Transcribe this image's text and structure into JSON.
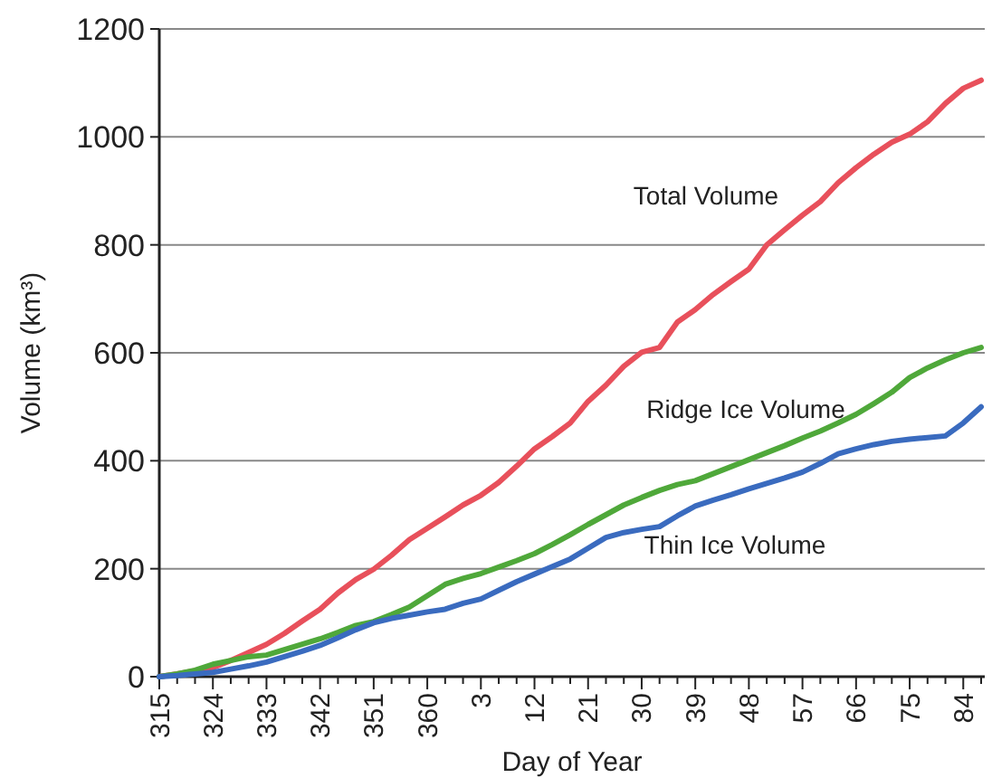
{
  "chart_data": {
    "type": "line",
    "xlabel": "Day of Year",
    "ylabel": "Volume (km³)",
    "ylim": [
      0,
      1200
    ],
    "yticks": [
      0,
      200,
      400,
      600,
      800,
      1000,
      1200
    ],
    "grid": "y",
    "legend": false,
    "marker": "none",
    "line_style": "solid",
    "categories": [
      "315",
      null,
      null,
      "324",
      null,
      null,
      "333",
      null,
      null,
      "342",
      null,
      null,
      "351",
      null,
      null,
      "360",
      null,
      null,
      "3",
      null,
      null,
      "12",
      null,
      null,
      "21",
      null,
      null,
      "30",
      null,
      null,
      "39",
      null,
      null,
      "48",
      null,
      null,
      "57",
      null,
      null,
      "66",
      null,
      null,
      "75",
      null,
      null,
      "84",
      null
    ],
    "series": [
      {
        "name": "Total Volume",
        "color": "#e8505b",
        "values": [
          0,
          5,
          11,
          17,
          30,
          45,
          60,
          80,
          103,
          125,
          155,
          180,
          199,
          225,
          254,
          275,
          296,
          318,
          336,
          360,
          390,
          422,
          445,
          470,
          510,
          540,
          575,
          601,
          610,
          657,
          680,
          708,
          732,
          755,
          800,
          828,
          855,
          880,
          915,
          943,
          968,
          990,
          1005,
          1028,
          1062,
          1090,
          1105
        ]
      },
      {
        "name": "Ridge Ice Volume",
        "color": "#4fa83a",
        "values": [
          0,
          5,
          12,
          23,
          30,
          37,
          40,
          50,
          60,
          70,
          82,
          95,
          102,
          115,
          129,
          150,
          171,
          182,
          191,
          203,
          215,
          228,
          245,
          263,
          282,
          300,
          318,
          332,
          345,
          356,
          363,
          376,
          389,
          402,
          415,
          428,
          442,
          455,
          470,
          486,
          506,
          527,
          554,
          572,
          587,
          600,
          610
        ]
      },
      {
        "name": "Thin Ice Volume",
        "color": "#3a6bbf",
        "values": [
          0,
          2,
          5,
          8,
          14,
          20,
          27,
          37,
          47,
          58,
          72,
          87,
          100,
          108,
          114,
          120,
          125,
          136,
          144,
          160,
          176,
          190,
          204,
          218,
          238,
          258,
          267,
          273,
          278,
          298,
          316,
          327,
          337,
          348,
          358,
          368,
          379,
          395,
          413,
          422,
          430,
          436,
          440,
          443,
          446,
          470,
          500
        ]
      }
    ]
  }
}
